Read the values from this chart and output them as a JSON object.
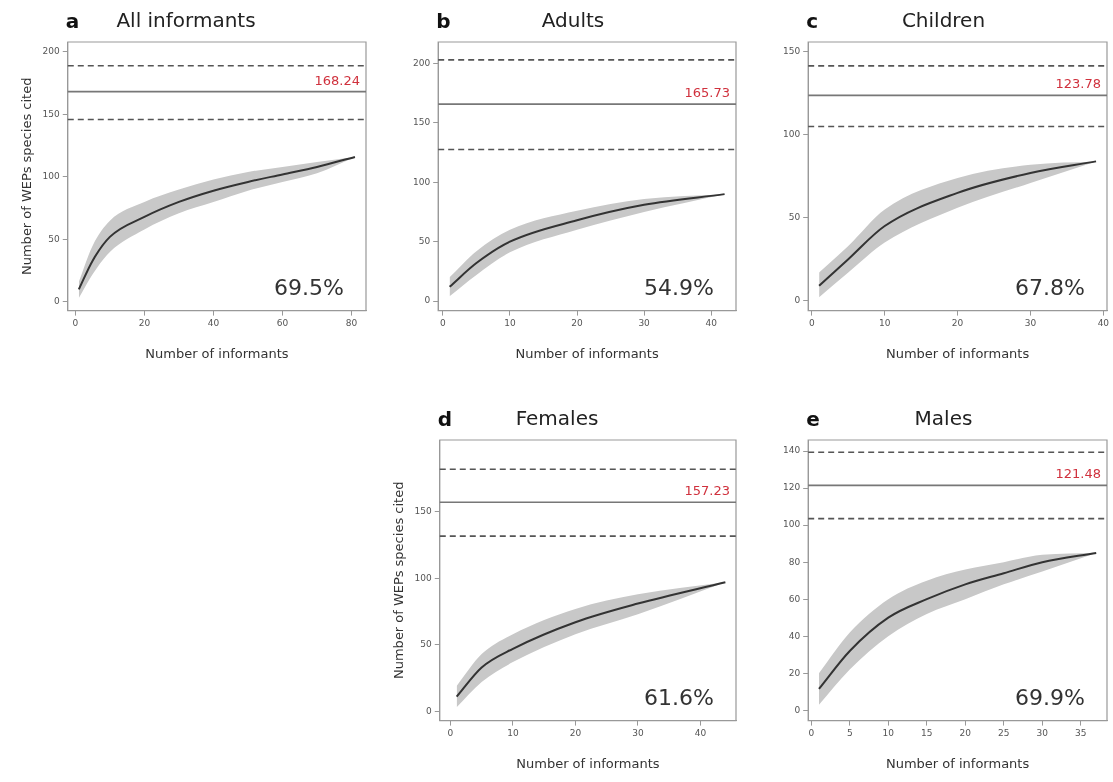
{
  "chart_data": [
    {
      "type": "line",
      "title": "All informants",
      "xlabel": "Number of informants",
      "ylabel": "Number of WEPs species cited",
      "annotations": [
        "a",
        "69.5%"
      ],
      "series": [
        {
          "color": "#333333",
          "x": [
            1,
            5,
            10,
            20,
            30,
            40,
            50,
            60,
            70,
            81
          ],
          "values": [
            10,
            33,
            52,
            68,
            80,
            89,
            96,
            102,
            108,
            116
          ],
          "lower": [
            3,
            22,
            40,
            58,
            71,
            80,
            89,
            96,
            103,
            116
          ],
          "upper": [
            16,
            45,
            65,
            80,
            90,
            98,
            104,
            108,
            112,
            116
          ]
        }
      ],
      "xlim": [
        -2.2,
        84.2
      ],
      "xticks": [
        0,
        20,
        40,
        60,
        80
      ],
      "ylim": [
        -7,
        208
      ],
      "yticks": [
        0,
        50,
        100,
        150,
        200
      ],
      "grid": false,
      "legend": false,
      "ref_lines": [
        {
          "axis": "y",
          "value": 189,
          "line_style": "dashed",
          "color": "#555555"
        },
        {
          "axis": "y",
          "value": 168.24,
          "label": "168.24",
          "line_style": "solid",
          "color": "#777777"
        },
        {
          "axis": "y",
          "value": 146,
          "line_style": "dashed",
          "color": "#555555"
        }
      ]
    },
    {
      "type": "line",
      "title": "Adults",
      "xlabel": "Number of informants",
      "annotations": [
        "b",
        "54.9%"
      ],
      "series": [
        {
          "color": "#333333",
          "x": [
            1,
            5,
            10,
            20,
            30,
            42
          ],
          "values": [
            12,
            32,
            50,
            68,
            81,
            90
          ],
          "lower": [
            4,
            22,
            41,
            60,
            75,
            90
          ],
          "upper": [
            20,
            42,
            60,
            76,
            86,
            90
          ]
        }
      ],
      "xlim": [
        -0.7,
        43.7
      ],
      "xticks": [
        0,
        10,
        20,
        30,
        40
      ],
      "ylim": [
        -8,
        218
      ],
      "yticks": [
        0,
        50,
        100,
        150,
        200
      ],
      "grid": false,
      "legend": false,
      "ref_lines": [
        {
          "axis": "y",
          "value": 203,
          "line_style": "dashed",
          "color": "#555555"
        },
        {
          "axis": "y",
          "value": 165.73,
          "label": "165.73",
          "line_style": "solid",
          "color": "#777777"
        },
        {
          "axis": "y",
          "value": 127.5,
          "line_style": "dashed",
          "color": "#555555"
        }
      ]
    },
    {
      "type": "line",
      "title": "Children",
      "xlabel": "Number of informants",
      "annotations": [
        "c",
        "67.8%"
      ],
      "series": [
        {
          "color": "#333333",
          "x": [
            1,
            5,
            10,
            20,
            30,
            39
          ],
          "values": [
            9,
            25,
            45,
            65,
            77,
            84
          ],
          "lower": [
            2,
            17,
            35,
            56,
            71,
            84
          ],
          "upper": [
            17,
            33,
            55,
            74,
            82,
            84
          ]
        }
      ],
      "xlim": [
        -0.5,
        40.5
      ],
      "xticks": [
        0,
        10,
        20,
        30,
        40
      ],
      "ylim": [
        -6,
        156
      ],
      "yticks": [
        0,
        50,
        100,
        150
      ],
      "grid": false,
      "legend": false,
      "ref_lines": [
        {
          "axis": "y",
          "value": 141.6,
          "line_style": "dashed",
          "color": "#555555"
        },
        {
          "axis": "y",
          "value": 123.78,
          "label": "123.78",
          "line_style": "solid",
          "color": "#777777"
        },
        {
          "axis": "y",
          "value": 105,
          "line_style": "dashed",
          "color": "#555555"
        }
      ]
    },
    {
      "type": "line",
      "title": "Females",
      "xlabel": "Number of informants",
      "ylabel": "Number of WEPs species cited",
      "annotations": [
        "d",
        "61.6%"
      ],
      "series": [
        {
          "color": "#333333",
          "x": [
            1,
            5,
            10,
            20,
            30,
            44
          ],
          "values": [
            11,
            33,
            47,
            67,
            81,
            97
          ],
          "lower": [
            3,
            22,
            37,
            58,
            73,
            97
          ],
          "upper": [
            19,
            43,
            58,
            77,
            88,
            97
          ]
        }
      ],
      "xlim": [
        -1.7,
        45.7
      ],
      "xticks": [
        0,
        10,
        20,
        30,
        40
      ],
      "ylim": [
        -7,
        204
      ],
      "yticks": [
        0,
        50,
        100,
        150
      ],
      "grid": false,
      "legend": false,
      "ref_lines": [
        {
          "axis": "y",
          "value": 182,
          "line_style": "dashed",
          "color": "#555555"
        },
        {
          "axis": "y",
          "value": 157.23,
          "label": "157.23",
          "line_style": "solid",
          "color": "#777777"
        },
        {
          "axis": "y",
          "value": 131.7,
          "line_style": "dashed",
          "color": "#555555"
        }
      ]
    },
    {
      "type": "line",
      "title": "Males",
      "xlabel": "Number of informants",
      "annotations": [
        "e",
        "69.9%"
      ],
      "series": [
        {
          "color": "#333333",
          "x": [
            1,
            5,
            10,
            15,
            20,
            25,
            30,
            37
          ],
          "values": [
            11.5,
            32,
            50,
            60,
            68,
            74,
            80,
            85
          ],
          "lower": [
            3,
            22,
            40,
            52,
            60,
            68,
            75,
            85
          ],
          "upper": [
            20,
            42,
            60,
            70,
            76,
            80,
            84,
            85
          ]
        }
      ],
      "xlim": [
        -0.4,
        38.4
      ],
      "xticks": [
        0,
        5,
        10,
        15,
        20,
        25,
        30,
        35
      ],
      "ylim": [
        -5.6,
        146
      ],
      "yticks": [
        0,
        20,
        40,
        60,
        80,
        100,
        120,
        140
      ],
      "grid": false,
      "legend": false,
      "ref_lines": [
        {
          "axis": "y",
          "value": 139.4,
          "line_style": "dashed",
          "color": "#555555"
        },
        {
          "axis": "y",
          "value": 121.48,
          "label": "121.48",
          "line_style": "solid",
          "color": "#777777"
        },
        {
          "axis": "y",
          "value": 103.5,
          "line_style": "dashed",
          "color": "#555555"
        }
      ]
    }
  ]
}
